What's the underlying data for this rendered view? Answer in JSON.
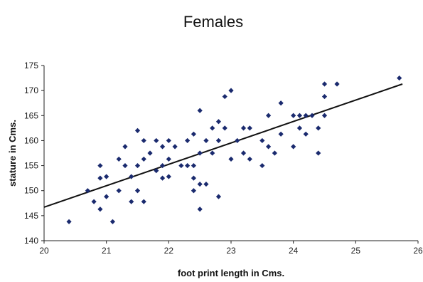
{
  "chart_data": {
    "type": "scatter",
    "title": "Females",
    "xlabel": "foot print length in Cms.",
    "ylabel": "stature in Cms.",
    "xlim": [
      20,
      26
    ],
    "ylim": [
      140,
      175
    ],
    "x_ticks": [
      20,
      21,
      22,
      23,
      24,
      25,
      26
    ],
    "y_ticks": [
      140,
      145,
      150,
      155,
      160,
      165,
      170,
      175
    ],
    "grid": false,
    "legend": "none",
    "marker_color": "#1a2a6e",
    "trendline": {
      "type": "linear",
      "x": [
        20,
        25.75
      ],
      "y": [
        146.7,
        171.3
      ],
      "color": "#111111"
    },
    "points": [
      [
        20.4,
        143.8
      ],
      [
        20.7,
        150.0
      ],
      [
        20.8,
        147.8
      ],
      [
        20.9,
        146.3
      ],
      [
        20.9,
        152.5
      ],
      [
        20.9,
        155.0
      ],
      [
        21.0,
        148.8
      ],
      [
        21.0,
        152.8
      ],
      [
        21.1,
        143.8
      ],
      [
        21.2,
        150.0
      ],
      [
        21.2,
        156.3
      ],
      [
        21.3,
        155.0
      ],
      [
        21.3,
        158.8
      ],
      [
        21.4,
        147.8
      ],
      [
        21.4,
        152.8
      ],
      [
        21.5,
        150.0
      ],
      [
        21.5,
        155.0
      ],
      [
        21.5,
        162.0
      ],
      [
        21.6,
        147.8
      ],
      [
        21.6,
        156.3
      ],
      [
        21.6,
        160.0
      ],
      [
        21.7,
        157.5
      ],
      [
        21.8,
        154.0
      ],
      [
        21.8,
        160.0
      ],
      [
        21.9,
        152.5
      ],
      [
        21.9,
        155.0
      ],
      [
        21.9,
        158.8
      ],
      [
        22.0,
        156.3
      ],
      [
        22.0,
        160.0
      ],
      [
        22.0,
        152.8
      ],
      [
        22.1,
        158.8
      ],
      [
        22.2,
        155.0
      ],
      [
        22.3,
        160.0
      ],
      [
        22.3,
        155.0
      ],
      [
        22.4,
        150.0
      ],
      [
        22.4,
        152.5
      ],
      [
        22.4,
        155.0
      ],
      [
        22.4,
        161.3
      ],
      [
        22.5,
        146.3
      ],
      [
        22.5,
        151.3
      ],
      [
        22.5,
        157.5
      ],
      [
        22.5,
        166.0
      ],
      [
        22.6,
        151.3
      ],
      [
        22.6,
        160.0
      ],
      [
        22.7,
        157.5
      ],
      [
        22.7,
        162.5
      ],
      [
        22.8,
        148.8
      ],
      [
        22.8,
        160.0
      ],
      [
        22.8,
        163.8
      ],
      [
        22.9,
        162.5
      ],
      [
        22.9,
        168.8
      ],
      [
        23.0,
        156.3
      ],
      [
        23.0,
        170.0
      ],
      [
        23.1,
        160.0
      ],
      [
        23.2,
        157.5
      ],
      [
        23.2,
        162.5
      ],
      [
        23.3,
        156.3
      ],
      [
        23.3,
        162.5
      ],
      [
        23.5,
        155.0
      ],
      [
        23.5,
        160.0
      ],
      [
        23.6,
        158.8
      ],
      [
        23.6,
        165.0
      ],
      [
        23.7,
        157.5
      ],
      [
        23.8,
        161.3
      ],
      [
        23.8,
        167.5
      ],
      [
        24.0,
        158.8
      ],
      [
        24.0,
        165.0
      ],
      [
        24.1,
        162.5
      ],
      [
        24.1,
        165.0
      ],
      [
        24.2,
        161.3
      ],
      [
        24.2,
        165.0
      ],
      [
        24.3,
        165.0
      ],
      [
        24.4,
        157.5
      ],
      [
        24.4,
        162.5
      ],
      [
        24.5,
        165.0
      ],
      [
        24.5,
        168.8
      ],
      [
        24.5,
        171.3
      ],
      [
        24.7,
        171.3
      ],
      [
        25.7,
        172.5
      ]
    ]
  }
}
